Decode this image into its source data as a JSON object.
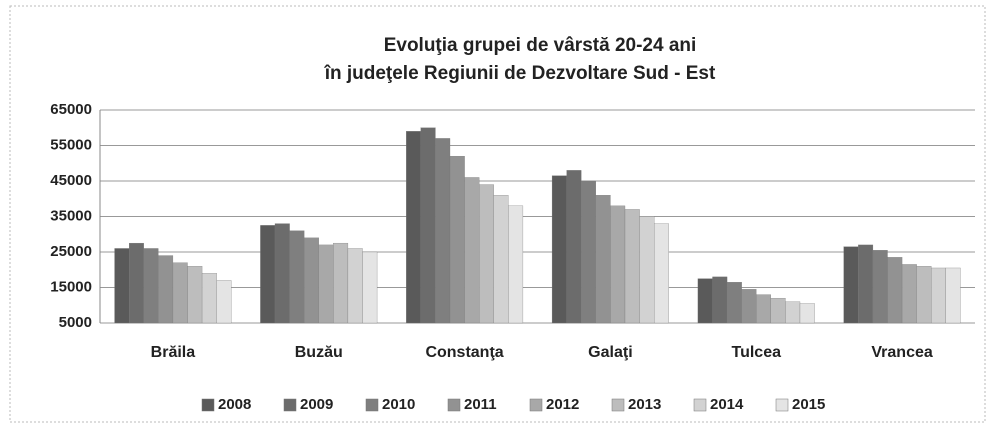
{
  "chart_data": {
    "type": "bar",
    "title": "Evoluţia grupei de vârstă 20-24 ani",
    "subtitle": "în judeţele Regiunii de Dezvoltare Sud - Est",
    "categories": [
      "Brăila",
      "Buzău",
      "Constanţa",
      "Galaţi",
      "Tulcea",
      "Vrancea"
    ],
    "series": [
      {
        "name": "2008",
        "color": "#5a5a5a",
        "values": [
          26000,
          32500,
          59000,
          46500,
          17500,
          26500
        ]
      },
      {
        "name": "2009",
        "color": "#6c6c6c",
        "values": [
          27500,
          33000,
          60000,
          48000,
          18000,
          27000
        ]
      },
      {
        "name": "2010",
        "color": "#7f7f7f",
        "values": [
          26000,
          31000,
          57000,
          45000,
          16500,
          25500
        ]
      },
      {
        "name": "2011",
        "color": "#929292",
        "values": [
          24000,
          29000,
          52000,
          41000,
          14500,
          23500
        ]
      },
      {
        "name": "2012",
        "color": "#a8a8a8",
        "values": [
          22000,
          27000,
          46000,
          38000,
          13000,
          21500
        ]
      },
      {
        "name": "2013",
        "color": "#bdbdbd",
        "values": [
          21000,
          27500,
          44000,
          37000,
          12000,
          21000
        ]
      },
      {
        "name": "2014",
        "color": "#d2d2d2",
        "values": [
          19000,
          26000,
          41000,
          35000,
          11000,
          20500
        ]
      },
      {
        "name": "2015",
        "color": "#e4e4e4",
        "values": [
          17000,
          25000,
          38000,
          33000,
          10500,
          20500
        ]
      }
    ],
    "ylim": [
      5000,
      65000
    ],
    "yticks": [
      5000,
      15000,
      25000,
      35000,
      45000,
      55000,
      65000
    ],
    "grid": true
  }
}
